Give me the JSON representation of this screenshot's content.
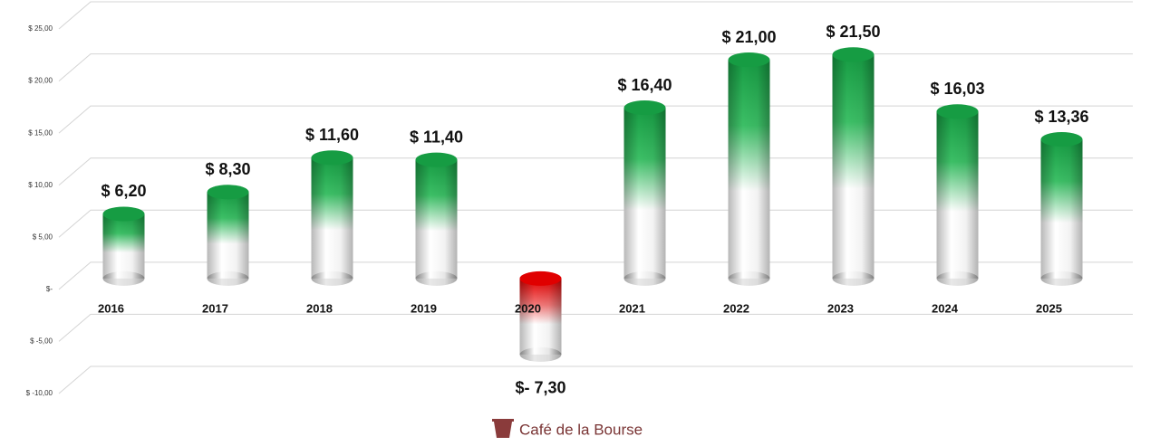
{
  "chart_data": {
    "type": "bar",
    "categories": [
      "2016",
      "2017",
      "2018",
      "2019",
      "2020",
      "2021",
      "2022",
      "2023",
      "2024",
      "2025"
    ],
    "values": [
      6.2,
      8.3,
      11.6,
      11.4,
      -7.3,
      16.4,
      21.0,
      21.5,
      16.03,
      13.36
    ],
    "value_labels": [
      "$ 6,20",
      "$ 8,30",
      "$ 11,60",
      "$ 11,40",
      "$- 7,30",
      "$ 16,40",
      "$ 21,00",
      "$ 21,50",
      "$ 16,03",
      "$ 13,36"
    ],
    "color": "#169c43",
    "negative_color": "#e00000",
    "ylim": [
      -10,
      25
    ],
    "yticks": [
      {
        "value": 25,
        "label": "$ 25,00"
      },
      {
        "value": 20,
        "label": "$ 20,00"
      },
      {
        "value": 15,
        "label": "$ 15,00"
      },
      {
        "value": 10,
        "label": "$ 10,00"
      },
      {
        "value": 5,
        "label": "$ 5,00"
      },
      {
        "value": 0,
        "label": "$-"
      },
      {
        "value": -5,
        "label": "$ -5,00"
      },
      {
        "value": -10,
        "label": "$ -10,00"
      }
    ],
    "grid": true
  },
  "watermark": "Café de la Bourse"
}
